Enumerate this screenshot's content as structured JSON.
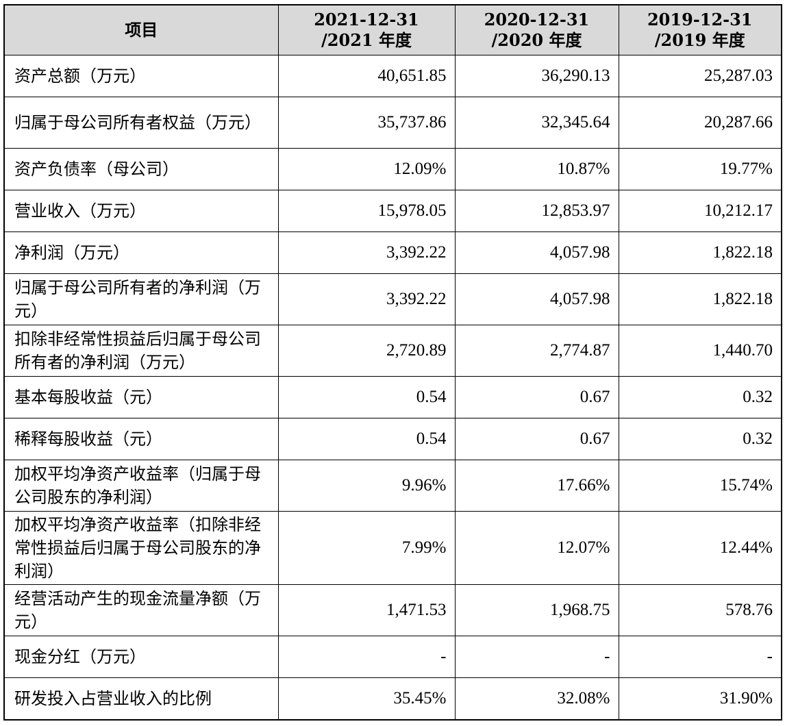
{
  "table": {
    "headers": [
      {
        "line1": "项目",
        "line2": ""
      },
      {
        "line1": "2021-12-31",
        "line2": "/2021 年度"
      },
      {
        "line1": "2020-12-31",
        "line2": "/2020 年度"
      },
      {
        "line1": "2019-12-31",
        "line2": "/2019 年度"
      }
    ],
    "rows": [
      {
        "label": "资产总额（万元）",
        "v2021": "40,651.85",
        "v2020": "36,290.13",
        "v2019": "25,287.03"
      },
      {
        "label": "归属于母公司所有者权益（万元）",
        "v2021": "35,737.86",
        "v2020": "32,345.64",
        "v2019": "20,287.66"
      },
      {
        "label": "资产负债率（母公司）",
        "v2021": "12.09%",
        "v2020": "10.87%",
        "v2019": "19.77%"
      },
      {
        "label": "营业收入（万元）",
        "v2021": "15,978.05",
        "v2020": "12,853.97",
        "v2019": "10,212.17"
      },
      {
        "label": "净利润（万元）",
        "v2021": "3,392.22",
        "v2020": "4,057.98",
        "v2019": "1,822.18"
      },
      {
        "label": "归属于母公司所有者的净利润（万元）",
        "v2021": "3,392.22",
        "v2020": "4,057.98",
        "v2019": "1,822.18"
      },
      {
        "label": "扣除非经常性损益后归属于母公司所有者的净利润（万元）",
        "v2021": "2,720.89",
        "v2020": "2,774.87",
        "v2019": "1,440.70"
      },
      {
        "label": "基本每股收益（元）",
        "v2021": "0.54",
        "v2020": "0.67",
        "v2019": "0.32"
      },
      {
        "label": "稀释每股收益（元）",
        "v2021": "0.54",
        "v2020": "0.67",
        "v2019": "0.32"
      },
      {
        "label": "加权平均净资产收益率（归属于母公司股东的净利润）",
        "v2021": "9.96%",
        "v2020": "17.66%",
        "v2019": "15.74%"
      },
      {
        "label": "加权平均净资产收益率（扣除非经常性损益后归属于母公司股东的净利润）",
        "v2021": "7.99%",
        "v2020": "12.07%",
        "v2019": "12.44%"
      },
      {
        "label": "经营活动产生的现金流量净额（万元）",
        "v2021": "1,471.53",
        "v2020": "1,968.75",
        "v2019": "578.76"
      },
      {
        "label": "现金分红（万元）",
        "v2021": "-",
        "v2020": "-",
        "v2019": "-"
      },
      {
        "label": "研发投入占营业收入的比例",
        "v2021": "35.45%",
        "v2020": "32.08%",
        "v2019": "31.90%"
      }
    ]
  }
}
